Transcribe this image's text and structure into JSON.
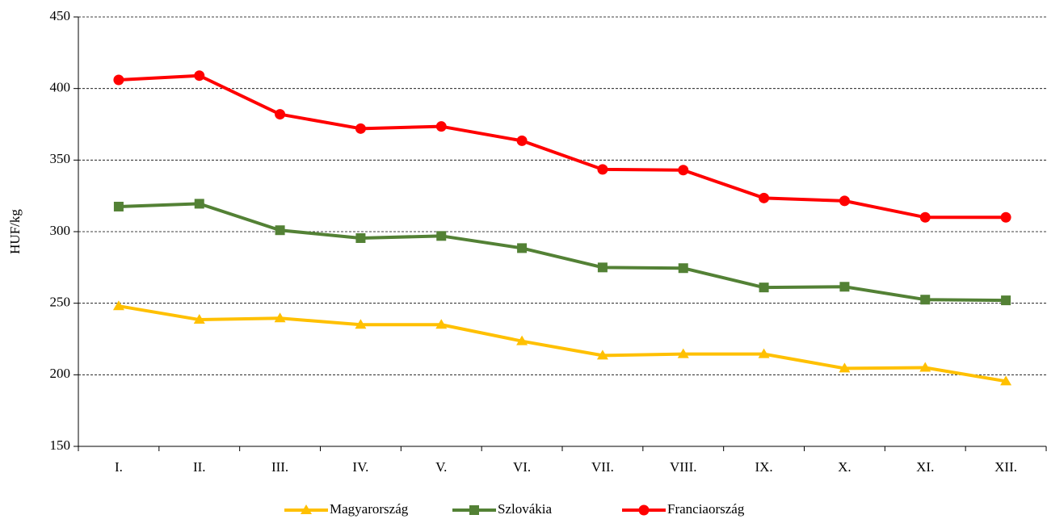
{
  "chart_data": {
    "type": "line",
    "y_label": "HUF/kg",
    "categories": [
      "I.",
      "II.",
      "III.",
      "IV.",
      "V.",
      "VI.",
      "VII.",
      "VIII.",
      "IX.",
      "X.",
      "XI.",
      "XII."
    ],
    "series": [
      {
        "name": "Magyarország",
        "color": "#ffc000",
        "marker": "triangle",
        "values": [
          248,
          238.5,
          239.5,
          235,
          235,
          223.5,
          213.5,
          214.5,
          214.5,
          204.5,
          205,
          195.5
        ]
      },
      {
        "name": "Szlovákia",
        "color": "#538135",
        "marker": "square",
        "values": [
          317.5,
          319.5,
          301,
          295.5,
          297,
          288.5,
          275,
          274.5,
          261,
          261.5,
          252.5,
          252
        ]
      },
      {
        "name": "Franciaország",
        "color": "#ff0000",
        "marker": "circle",
        "values": [
          406,
          409,
          382,
          372,
          373.5,
          363.5,
          343.5,
          343,
          323.5,
          321.5,
          310,
          310
        ]
      }
    ],
    "ylim": [
      150,
      450
    ],
    "yticks": [
      150,
      200,
      250,
      300,
      350,
      400,
      450
    ],
    "grid": true,
    "legend": "bottom"
  }
}
